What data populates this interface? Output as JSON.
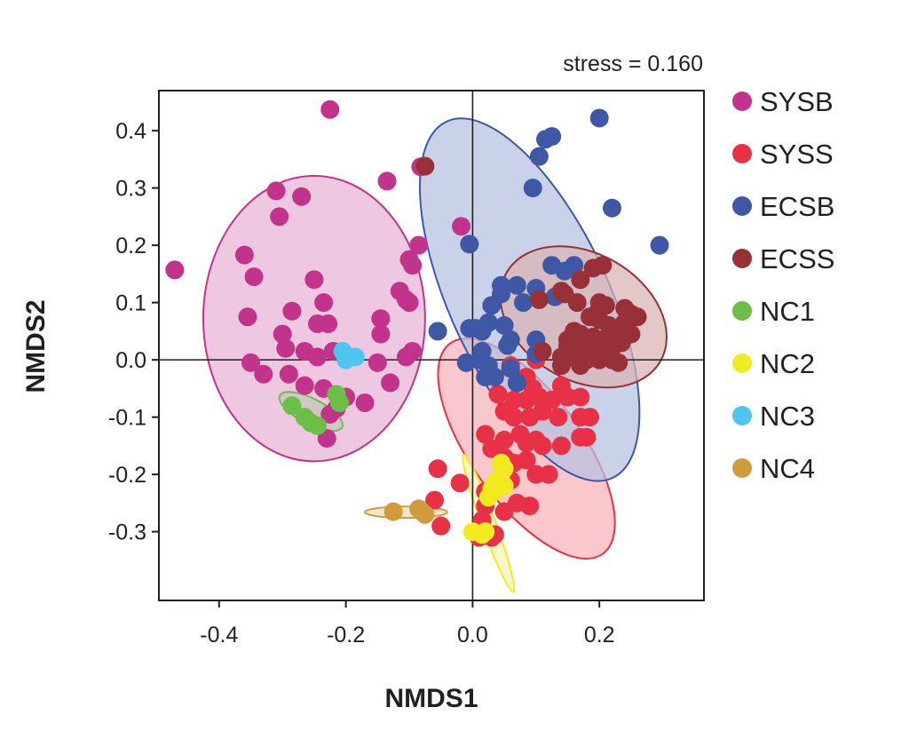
{
  "chart_data": {
    "type": "scatter",
    "title": "",
    "annotation": "stress = 0.160",
    "xlabel": "NMDS1",
    "ylabel": "NMDS2",
    "xlim": [
      -0.495,
      0.365
    ],
    "ylim": [
      -0.42,
      0.47
    ],
    "xticks": [
      -0.4,
      -0.2,
      0.0,
      0.2
    ],
    "xtick_labels": [
      "-0.4",
      "-0.2",
      "0.0",
      "0.2"
    ],
    "yticks": [
      0.4,
      0.3,
      0.2,
      0.1,
      0.0,
      -0.1,
      -0.2,
      -0.3
    ],
    "ytick_labels": [
      "0.4",
      "0.3",
      "0.2",
      "0.1",
      "0.0",
      "-0.1",
      "-0.2",
      "-0.3"
    ],
    "grid": false,
    "reference_lines": {
      "x": 0.0,
      "y": 0.0
    },
    "legend_position": "right",
    "series": [
      {
        "name": "SYSB",
        "color": "#c2338c",
        "fill": "#e8b3d6",
        "ellipse": {
          "cx": -0.25,
          "cy": 0.072,
          "rx": 0.175,
          "ry": 0.225,
          "angle_deg": 0
        },
        "points": [
          [
            -0.225,
            0.437
          ],
          [
            -0.47,
            0.157
          ],
          [
            -0.31,
            0.295
          ],
          [
            -0.305,
            0.25
          ],
          [
            -0.27,
            0.285
          ],
          [
            -0.135,
            0.312
          ],
          [
            -0.082,
            0.337
          ],
          [
            -0.36,
            0.183
          ],
          [
            -0.345,
            0.145
          ],
          [
            -0.355,
            0.075
          ],
          [
            -0.285,
            0.085
          ],
          [
            -0.25,
            0.14
          ],
          [
            -0.235,
            0.1
          ],
          [
            -0.245,
            0.063
          ],
          [
            -0.228,
            0.063
          ],
          [
            -0.3,
            0.045
          ],
          [
            -0.295,
            0.02
          ],
          [
            -0.265,
            0.015
          ],
          [
            -0.245,
            0.005
          ],
          [
            -0.22,
            0.015
          ],
          [
            -0.35,
            -0.005
          ],
          [
            -0.33,
            -0.025
          ],
          [
            -0.29,
            -0.025
          ],
          [
            -0.265,
            -0.045
          ],
          [
            -0.235,
            -0.05
          ],
          [
            -0.215,
            -0.085
          ],
          [
            -0.225,
            -0.095
          ],
          [
            -0.23,
            -0.137
          ],
          [
            -0.2,
            -0.065
          ],
          [
            -0.17,
            -0.075
          ],
          [
            -0.145,
            0.072
          ],
          [
            -0.145,
            0.045
          ],
          [
            -0.13,
            -0.04
          ],
          [
            -0.15,
            -0.005
          ],
          [
            -0.115,
            0.12
          ],
          [
            -0.105,
            0.105
          ],
          [
            -0.105,
            0.005
          ],
          [
            -0.095,
            0.165
          ],
          [
            -0.1,
            0.175
          ],
          [
            -0.085,
            0.2
          ],
          [
            -0.1,
            0.1
          ],
          [
            -0.095,
            0.015
          ],
          [
            -0.018,
            0.233
          ]
        ]
      },
      {
        "name": "SYSS",
        "color": "#e83046",
        "fill": "#f6b1b8",
        "ellipse": {
          "cx": 0.085,
          "cy": -0.155,
          "rx": 0.087,
          "ry": 0.205,
          "angle_deg": 36
        },
        "points": [
          [
            0.06,
            -0.01
          ],
          [
            0.1,
            0.0
          ],
          [
            0.085,
            -0.03
          ],
          [
            0.07,
            -0.04
          ],
          [
            0.095,
            -0.05
          ],
          [
            0.14,
            -0.045
          ],
          [
            0.04,
            -0.06
          ],
          [
            0.065,
            -0.07
          ],
          [
            0.085,
            -0.07
          ],
          [
            0.105,
            -0.065
          ],
          [
            0.125,
            -0.07
          ],
          [
            0.15,
            -0.065
          ],
          [
            0.17,
            -0.065
          ],
          [
            0.05,
            -0.09
          ],
          [
            0.065,
            -0.1
          ],
          [
            0.09,
            -0.1
          ],
          [
            0.11,
            -0.09
          ],
          [
            0.135,
            -0.1
          ],
          [
            0.17,
            -0.1
          ],
          [
            0.185,
            -0.1
          ],
          [
            0.02,
            -0.13
          ],
          [
            0.03,
            -0.155
          ],
          [
            0.05,
            -0.14
          ],
          [
            0.075,
            -0.13
          ],
          [
            0.085,
            -0.145
          ],
          [
            0.1,
            -0.14
          ],
          [
            0.11,
            -0.15
          ],
          [
            0.14,
            -0.15
          ],
          [
            0.17,
            -0.135
          ],
          [
            0.18,
            -0.135
          ],
          [
            0.05,
            -0.17
          ],
          [
            0.065,
            -0.18
          ],
          [
            0.085,
            -0.175
          ],
          [
            0.12,
            -0.2
          ],
          [
            0.1,
            -0.2
          ],
          [
            0.045,
            -0.205
          ],
          [
            0.06,
            -0.21
          ],
          [
            -0.055,
            -0.19
          ],
          [
            -0.02,
            -0.215
          ],
          [
            0.02,
            -0.23
          ],
          [
            -0.06,
            -0.245
          ],
          [
            0.07,
            -0.25
          ],
          [
            0.09,
            -0.255
          ],
          [
            0.02,
            -0.255
          ],
          [
            0.05,
            -0.265
          ],
          [
            -0.05,
            -0.29
          ],
          [
            0.015,
            -0.28
          ],
          [
            0.02,
            -0.3
          ],
          [
            0.01,
            -0.31
          ],
          [
            0.03,
            -0.31
          ],
          [
            0.035,
            -0.305
          ]
        ]
      },
      {
        "name": "ECSB",
        "color": "#3f58a6",
        "fill": "#b6c0e1",
        "ellipse": {
          "cx": 0.09,
          "cy": 0.105,
          "rx": 0.125,
          "ry": 0.31,
          "angle_deg": 25
        },
        "points": [
          [
            0.2,
            0.422
          ],
          [
            0.125,
            0.39
          ],
          [
            0.115,
            0.385
          ],
          [
            0.105,
            0.355
          ],
          [
            0.095,
            0.3
          ],
          [
            0.22,
            0.265
          ],
          [
            0.295,
            0.2
          ],
          [
            -0.005,
            0.202
          ],
          [
            0.125,
            0.165
          ],
          [
            0.16,
            0.165
          ],
          [
            0.145,
            0.155
          ],
          [
            0.07,
            0.13
          ],
          [
            0.1,
            0.125
          ],
          [
            0.045,
            0.13
          ],
          [
            0.08,
            0.1
          ],
          [
            0.045,
            0.115
          ],
          [
            0.03,
            0.095
          ],
          [
            0.13,
            0.11
          ],
          [
            0.025,
            0.065
          ],
          [
            0.05,
            0.06
          ],
          [
            -0.005,
            0.055
          ],
          [
            0.005,
            0.055
          ],
          [
            0.015,
            0.05
          ],
          [
            -0.055,
            0.05
          ],
          [
            0.06,
            0.035
          ],
          [
            0.1,
            0.035
          ],
          [
            0.055,
            0.025
          ],
          [
            0.015,
            0.015
          ],
          [
            0.1,
            0.01
          ],
          [
            0.01,
            0.0
          ],
          [
            -0.01,
            -0.005
          ],
          [
            0.025,
            -0.01
          ],
          [
            0.035,
            -0.03
          ],
          [
            0.06,
            -0.015
          ],
          [
            0.02,
            -0.03
          ],
          [
            0.07,
            -0.04
          ]
        ]
      },
      {
        "name": "ECSS",
        "color": "#983038",
        "fill": "#dab3b3",
        "ellipse": {
          "cx": 0.175,
          "cy": 0.075,
          "rx": 0.14,
          "ry": 0.1,
          "angle_deg": -30
        },
        "points": [
          [
            -0.075,
            0.338
          ],
          [
            0.19,
            0.16
          ],
          [
            0.205,
            0.165
          ],
          [
            0.17,
            0.14
          ],
          [
            0.14,
            0.12
          ],
          [
            0.145,
            0.115
          ],
          [
            0.105,
            0.105
          ],
          [
            0.165,
            0.1
          ],
          [
            0.2,
            0.1
          ],
          [
            0.21,
            0.095
          ],
          [
            0.24,
            0.09
          ],
          [
            0.25,
            0.08
          ],
          [
            0.26,
            0.075
          ],
          [
            0.195,
            0.08
          ],
          [
            0.185,
            0.075
          ],
          [
            0.2,
            0.07
          ],
          [
            0.215,
            0.06
          ],
          [
            0.24,
            0.065
          ],
          [
            0.16,
            0.05
          ],
          [
            0.17,
            0.045
          ],
          [
            0.19,
            0.04
          ],
          [
            0.205,
            0.035
          ],
          [
            0.23,
            0.04
          ],
          [
            0.25,
            0.045
          ],
          [
            0.15,
            0.035
          ],
          [
            0.15,
            0.025
          ],
          [
            0.175,
            0.025
          ],
          [
            0.195,
            0.02
          ],
          [
            0.22,
            0.02
          ],
          [
            0.235,
            0.03
          ],
          [
            0.11,
            0.015
          ],
          [
            0.14,
            0.005
          ],
          [
            0.16,
            0.005
          ],
          [
            0.18,
            0.0
          ],
          [
            0.2,
            0.0
          ],
          [
            0.22,
            0.0
          ],
          [
            0.23,
            -0.005
          ],
          [
            0.14,
            -0.01
          ],
          [
            0.17,
            -0.01
          ],
          [
            0.185,
            0.01
          ]
        ]
      },
      {
        "name": "NC1",
        "color": "#6cbe49",
        "fill": "#c9c6b8",
        "ellipse": {
          "cx": -0.255,
          "cy": -0.09,
          "rx": 0.055,
          "ry": 0.02,
          "angle_deg": -27
        },
        "points": [
          [
            -0.285,
            -0.08
          ],
          [
            -0.265,
            -0.1
          ],
          [
            -0.255,
            -0.11
          ],
          [
            -0.245,
            -0.115
          ],
          [
            -0.215,
            -0.06
          ],
          [
            -0.21,
            -0.075
          ]
        ]
      },
      {
        "name": "NC2",
        "color": "#f2ea20",
        "fill": "#f7f3b4",
        "ellipse": {
          "cx": 0.025,
          "cy": -0.285,
          "rx": 0.115,
          "ry": 0.011,
          "angle_deg": -70
        },
        "points": [
          [
            0.045,
            -0.18
          ],
          [
            0.05,
            -0.19
          ],
          [
            0.045,
            -0.2
          ],
          [
            0.035,
            -0.215
          ],
          [
            0.05,
            -0.22
          ],
          [
            0.03,
            -0.225
          ],
          [
            0.035,
            -0.23
          ],
          [
            0.025,
            -0.24
          ],
          [
            0.0,
            -0.3
          ],
          [
            0.015,
            -0.305
          ],
          [
            0.02,
            -0.3
          ]
        ]
      },
      {
        "name": "NC3",
        "color": "#4dc5ee",
        "fill": "#c8eaf7",
        "ellipse": null,
        "points": [
          [
            -0.205,
            0.015
          ],
          [
            -0.195,
            0.005
          ],
          [
            -0.185,
            0.005
          ],
          [
            -0.2,
            0.0
          ]
        ]
      },
      {
        "name": "NC4",
        "color": "#cf9b3b",
        "fill": "#ecdcb5",
        "ellipse": {
          "cx": -0.105,
          "cy": -0.266,
          "rx": 0.065,
          "ry": 0.009,
          "angle_deg": 0
        },
        "points": [
          [
            -0.125,
            -0.265
          ],
          [
            -0.085,
            -0.26
          ],
          [
            -0.075,
            -0.27
          ],
          [
            -0.08,
            -0.265
          ]
        ]
      }
    ]
  }
}
